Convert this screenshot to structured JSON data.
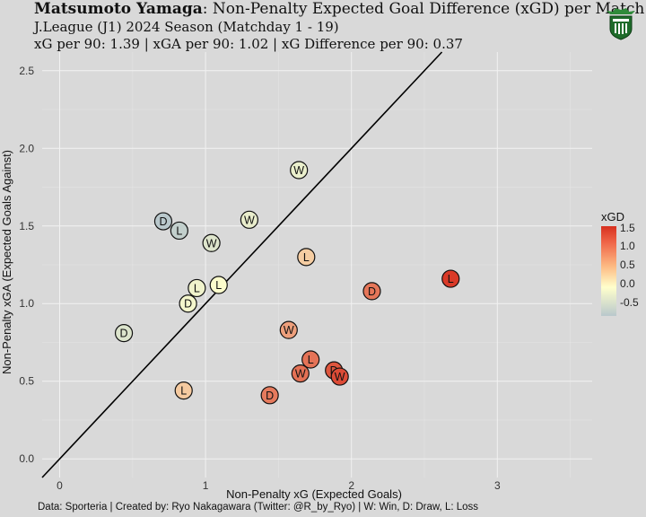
{
  "header": {
    "team": "Matsumoto Yamaga",
    "title_rest": ": Non-Penalty Expected Goal Difference (xGD) per Match",
    "subtitle1": "J.League (J1) 2024 Season (Matchday 1 - 19)",
    "subtitle2": "xG per 90: 1.39 | xGA per 90: 1.02 | xG Difference per 90: 0.37"
  },
  "caption": "Data: Sporteria | Created by: Ryo Nakagawara (Twitter: @R_by_Ryo) | W: Win, D: Draw, L: Loss",
  "logo": {
    "icon": "team-crest-icon",
    "colors": [
      "#1e6b2a",
      "#ffffff"
    ]
  },
  "legend": {
    "title": "xGD",
    "ticks": [
      "1.5",
      "1.0",
      "0.5",
      "0.0",
      "-0.5"
    ],
    "colors": {
      "high": "#d7301f",
      "mid": "#ffffcc",
      "low": "#b9c8cc"
    }
  },
  "chart_data": {
    "type": "scatter",
    "xlabel": "Non-Penalty xG (Expected Goals)",
    "ylabel": "Non-Penalty xGA (Expected Goals Against)",
    "xlim": [
      -0.12,
      3.65
    ],
    "ylim": [
      -0.12,
      2.62
    ],
    "xticks": [
      0,
      1,
      2,
      3
    ],
    "xtick_labels": [
      "0",
      "1",
      "2",
      "3"
    ],
    "yticks": [
      0,
      0.5,
      1.0,
      1.5,
      2.0,
      2.5
    ],
    "ytick_labels": [
      "0.0",
      "0.5",
      "1.0",
      "1.5",
      "2.0",
      "2.5"
    ],
    "reference_line": "y = x",
    "grid": true,
    "points": [
      {
        "x": 0.44,
        "y": 0.81,
        "result": "D"
      },
      {
        "x": 0.71,
        "y": 1.53,
        "result": "D"
      },
      {
        "x": 0.82,
        "y": 1.47,
        "result": "L"
      },
      {
        "x": 0.85,
        "y": 0.44,
        "result": "L"
      },
      {
        "x": 0.88,
        "y": 1.0,
        "result": "D"
      },
      {
        "x": 0.94,
        "y": 1.1,
        "result": "L"
      },
      {
        "x": 1.04,
        "y": 1.39,
        "result": "W"
      },
      {
        "x": 1.09,
        "y": 1.12,
        "result": "L"
      },
      {
        "x": 1.3,
        "y": 1.54,
        "result": "W"
      },
      {
        "x": 1.44,
        "y": 0.41,
        "result": "D"
      },
      {
        "x": 1.57,
        "y": 0.83,
        "result": "W"
      },
      {
        "x": 1.64,
        "y": 1.86,
        "result": "W"
      },
      {
        "x": 1.65,
        "y": 0.55,
        "result": "W"
      },
      {
        "x": 1.69,
        "y": 1.3,
        "result": "L"
      },
      {
        "x": 1.72,
        "y": 0.64,
        "result": "L"
      },
      {
        "x": 1.88,
        "y": 0.57,
        "result": "D"
      },
      {
        "x": 1.92,
        "y": 0.53,
        "result": "W"
      },
      {
        "x": 2.14,
        "y": 1.08,
        "result": "D"
      },
      {
        "x": 2.68,
        "y": 1.16,
        "result": "L"
      }
    ]
  }
}
